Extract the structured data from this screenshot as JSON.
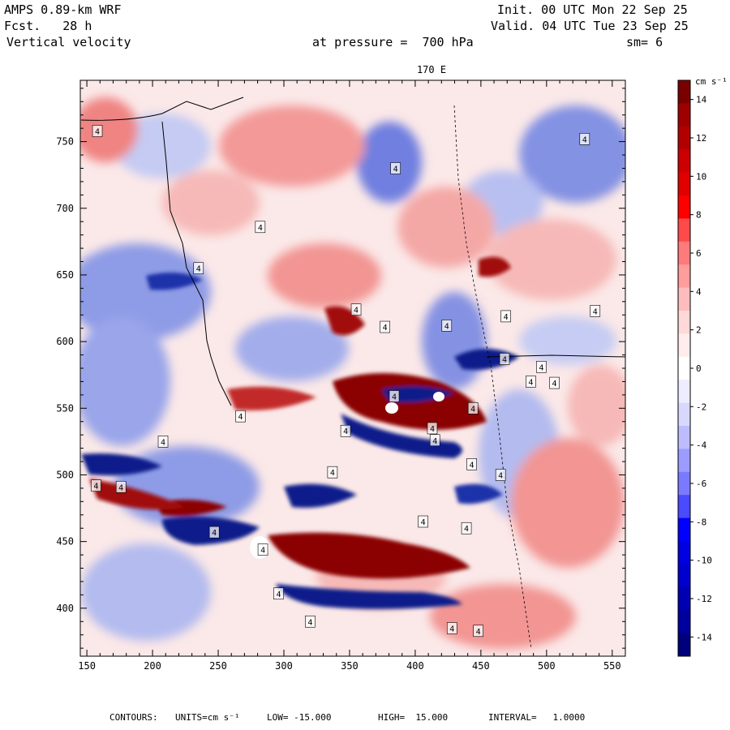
{
  "header": {
    "model": "AMPS 0.89-km WRF",
    "forecast": "Fcst.   28 h",
    "field": "Vertical velocity",
    "init": "Init. 00 UTC Mon 22 Sep 25",
    "valid": "Valid. 04 UTC Tue 23 Sep 25",
    "level": "at pressure =  700 hPa",
    "smoothing": "sm= 6"
  },
  "map": {
    "meridian_label": "170 E",
    "x_ticks": [
      150,
      200,
      250,
      300,
      350,
      400,
      450,
      500,
      550
    ],
    "y_ticks": [
      400,
      450,
      500,
      550,
      600,
      650,
      700,
      750
    ],
    "x_range": [
      145,
      560
    ],
    "y_range": [
      364,
      796
    ],
    "contour_label": "4",
    "field_colors": {
      "positive_strong": "#8b0000",
      "positive_mid": "#e8413e",
      "positive_weak": "#f7c6c4",
      "near_zero": "#fdf1f1",
      "negative_weak": "#d7daf6",
      "negative_mid": "#4a5fd8",
      "negative_strong": "#0a1d8a"
    }
  },
  "colorbar": {
    "units_label": "cm s⁻¹",
    "labels": [
      "14",
      "12",
      "10",
      "8",
      "6",
      "4",
      "2",
      "0",
      "-2",
      "-4",
      "-6",
      "-8",
      "-10",
      "-12",
      "-14"
    ],
    "colors": [
      "#7a0000",
      "#9e0000",
      "#b20000",
      "#cc0000",
      "#e00000",
      "#ff0000",
      "#ff4a4a",
      "#ff7a7a",
      "#ff9c9c",
      "#ffbcbc",
      "#ffd8d8",
      "#ffeded",
      "#ffffff",
      "#ededff",
      "#d8d8ff",
      "#bcbcff",
      "#9c9cff",
      "#7a7aff",
      "#4a4aff",
      "#0000ff",
      "#0000e0",
      "#0000cc",
      "#0000b2",
      "#00009e",
      "#00007a"
    ]
  },
  "footer": {
    "contours": "CONTOURS:",
    "units": "UNITS=cm s⁻¹",
    "low": "LOW= -15.000",
    "high": "HIGH=  15.000",
    "interval": "INTERVAL=   1.0000"
  }
}
